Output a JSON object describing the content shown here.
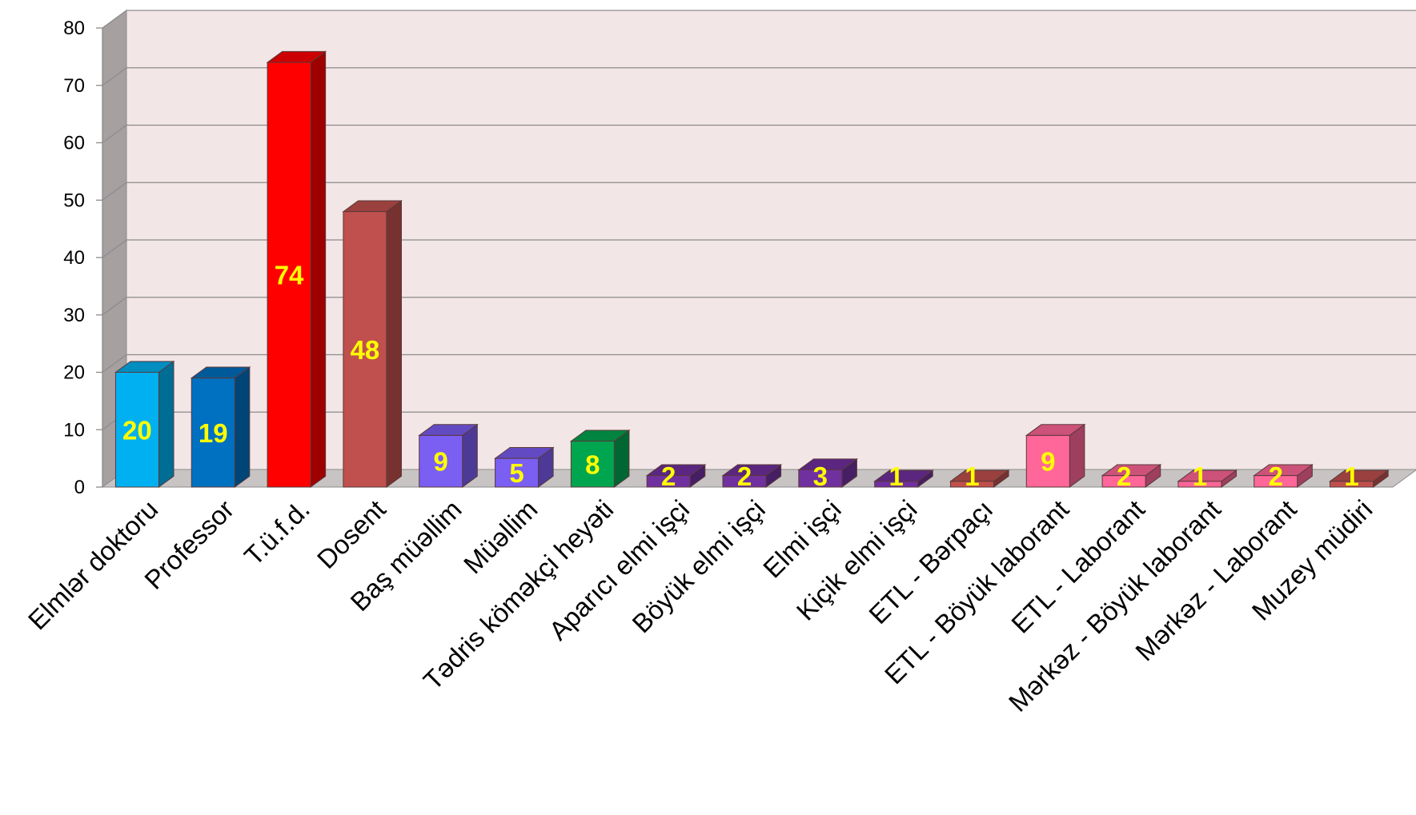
{
  "chart_data": {
    "type": "bar",
    "style": "3d-column",
    "title": "",
    "xlabel": "",
    "ylabel": "",
    "ylim": [
      0,
      80
    ],
    "yticks": [
      0,
      10,
      20,
      30,
      40,
      50,
      60,
      70,
      80
    ],
    "grid": true,
    "legend": "none",
    "wall_color": "#f3e6e6",
    "label_color": "#ffff00",
    "bars": [
      {
        "category": "Elmlər doktoru",
        "value": 20,
        "label": "20",
        "color": "#00b0f0"
      },
      {
        "category": "Professor",
        "value": 19,
        "label": "19",
        "color": "#0070c0"
      },
      {
        "category": "T.ü.f.d.",
        "value": 74,
        "label": "74",
        "color": "#ff0000"
      },
      {
        "category": "Dosent",
        "value": 48,
        "label": "48",
        "color": "#c0504d"
      },
      {
        "category": "Baş müəllim",
        "value": 9,
        "label": "9",
        "color": "#7b5ef2"
      },
      {
        "category": "Müəllim",
        "value": 5,
        "label": "5",
        "color": "#7b5ef2"
      },
      {
        "category": "Tədris köməkçi heyəti",
        "value": 8,
        "label": "8",
        "color": "#00a550"
      },
      {
        "category": "Aparıcı elmi işçi",
        "value": 2,
        "label": "2",
        "color": "#7030a0"
      },
      {
        "category": "Böyük elmi işçi",
        "value": 2,
        "label": "2",
        "color": "#7030a0"
      },
      {
        "category": "Elmi işçi",
        "value": 3,
        "label": "3",
        "color": "#7030a0"
      },
      {
        "category": "Kiçik elmi işçi",
        "value": 1,
        "label": "1",
        "color": "#7030a0"
      },
      {
        "category": "ETL - Bərpaçı",
        "value": 1,
        "label": "1",
        "color": "#c0504d"
      },
      {
        "category": "ETL - Böyük laborant",
        "value": 9,
        "label": "9",
        "color": "#ff6699"
      },
      {
        "category": "ETL - Laborant",
        "value": 2,
        "label": "2",
        "color": "#ff6699"
      },
      {
        "category": "Mərkəz - Böyük laborant",
        "value": 1,
        "label": "1",
        "color": "#ff6699"
      },
      {
        "category": "Mərkəz - Laborant",
        "value": 2,
        "label": "2",
        "color": "#ff6699"
      },
      {
        "category": "Muzey müdiri",
        "value": 1,
        "label": "1",
        "color": "#c0504d"
      }
    ]
  }
}
